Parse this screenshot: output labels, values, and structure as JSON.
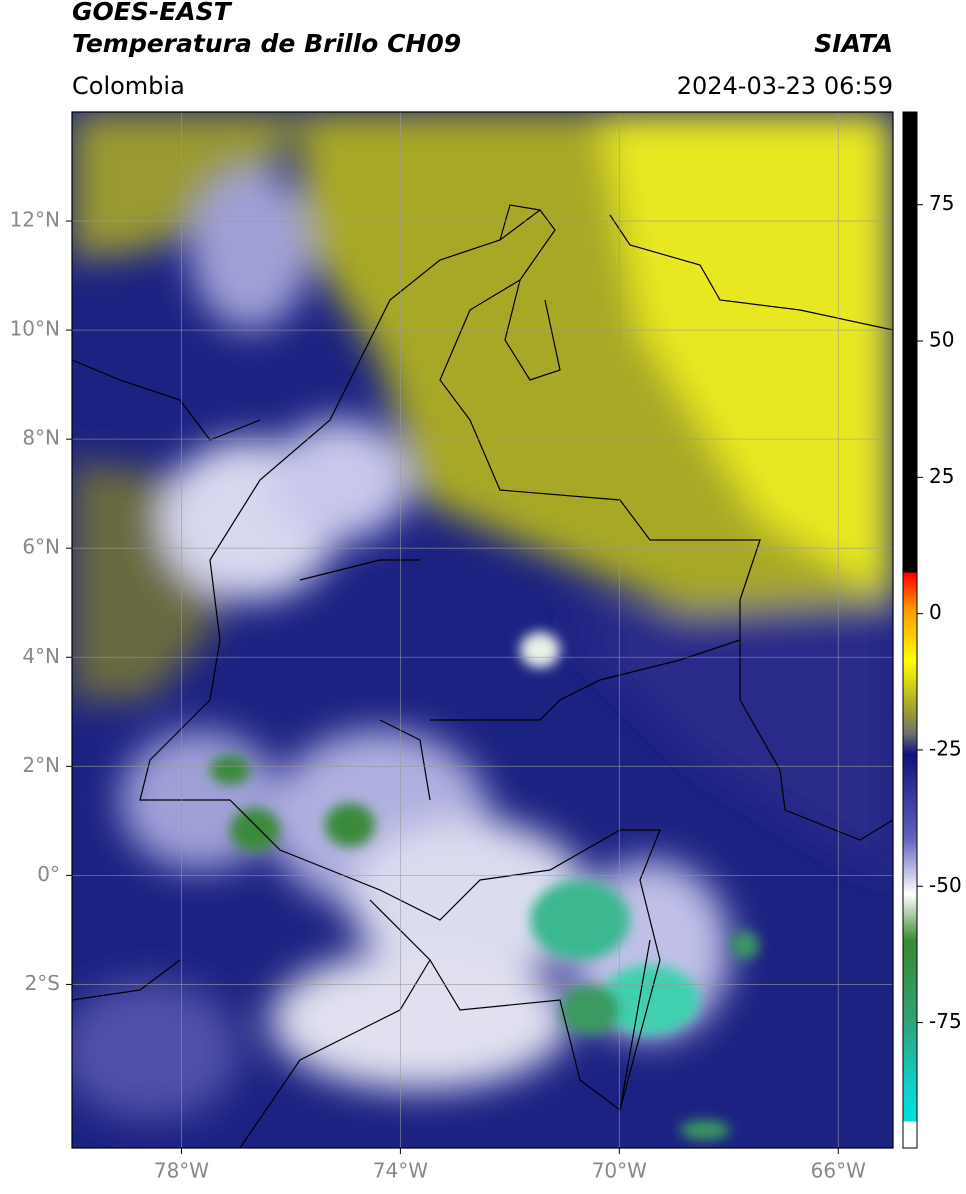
{
  "header": {
    "title": "GOES-EAST",
    "subtitle": "Temperatura de Brillo CH09",
    "source": "SIATA",
    "region": "Colombia",
    "datetime": "2024-03-23 06:59"
  },
  "map": {
    "xlim": [
      -80,
      -65
    ],
    "ylim": [
      -5,
      14
    ],
    "xticks": [
      {
        "value": -78,
        "label": "78°W"
      },
      {
        "value": -74,
        "label": "74°W"
      },
      {
        "value": -70,
        "label": "70°W"
      },
      {
        "value": -66,
        "label": "66°W"
      }
    ],
    "yticks": [
      {
        "value": 12,
        "label": "12°N"
      },
      {
        "value": 10,
        "label": "10°N"
      },
      {
        "value": 8,
        "label": "8°N"
      },
      {
        "value": 6,
        "label": "6°N"
      },
      {
        "value": 4,
        "label": "4°N"
      },
      {
        "value": 2,
        "label": "2°N"
      },
      {
        "value": 0,
        "label": "0°"
      },
      {
        "value": -2,
        "label": "2°S"
      }
    ],
    "grid": true
  },
  "colorbar": {
    "lim": [
      -98,
      92
    ],
    "ticks": [
      75,
      50,
      25,
      0,
      -25,
      -50,
      -75
    ]
  }
}
